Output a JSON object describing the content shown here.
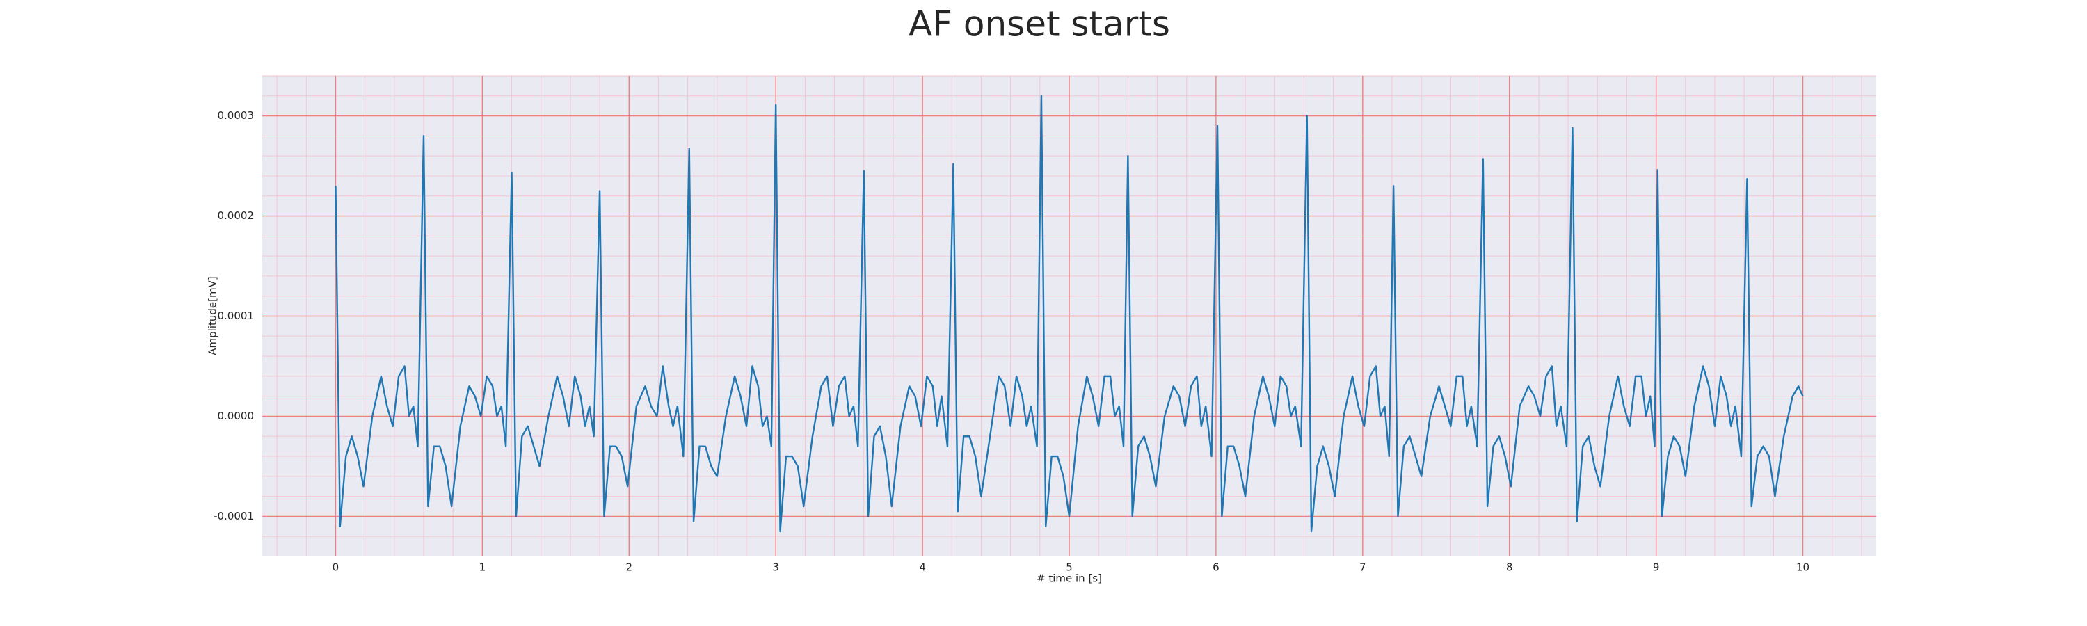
{
  "chart_data": {
    "type": "line",
    "title": "AF onset starts",
    "xlabel": "# time in [s]",
    "ylabel": "Amplitude[mV]",
    "xlim": [
      -0.5,
      10.5
    ],
    "xticks": [
      0,
      1,
      2,
      3,
      4,
      5,
      6,
      7,
      8,
      9,
      10
    ],
    "ylim": [
      -0.00014,
      0.00034
    ],
    "yticks": [
      -0.0001,
      {
        "value": 0,
        "label": "0.0000"
      },
      0.0001,
      0.0002,
      0.0003
    ],
    "grid": true,
    "minor_grid": true,
    "grid_color": "#f08080",
    "minor_grid_color": "#f4c6d2",
    "background": "#eaeaf2",
    "series": [
      {
        "color": "#1f77b4",
        "x": [
          0,
          0.03,
          0.07,
          0.11,
          0.15,
          0.19,
          0.25,
          0.31,
          0.35,
          0.39,
          0.43,
          0.47,
          0.5,
          0.53,
          0.56,
          0.6,
          0.63,
          0.67,
          0.71,
          0.75,
          0.79,
          0.85,
          0.91,
          0.95,
          0.99,
          1.03,
          1.07,
          1.1,
          1.13,
          1.16,
          1.2,
          1.23,
          1.27,
          1.31,
          1.35,
          1.39,
          1.45,
          1.51,
          1.55,
          1.59,
          1.63,
          1.67,
          1.7,
          1.73,
          1.76,
          1.8,
          1.83,
          1.87,
          1.91,
          1.95,
          1.99,
          2.05,
          2.11,
          2.15,
          2.19,
          2.23,
          2.27,
          2.3,
          2.33,
          2.37,
          2.41,
          2.44,
          2.48,
          2.52,
          2.56,
          2.6,
          2.66,
          2.72,
          2.76,
          2.8,
          2.84,
          2.88,
          2.91,
          2.94,
          2.97,
          3.0,
          3.03,
          3.07,
          3.11,
          3.15,
          3.19,
          3.25,
          3.31,
          3.35,
          3.39,
          3.43,
          3.47,
          3.5,
          3.53,
          3.56,
          3.6,
          3.63,
          3.67,
          3.71,
          3.75,
          3.79,
          3.85,
          3.91,
          3.95,
          3.99,
          4.03,
          4.07,
          4.1,
          4.13,
          4.17,
          4.21,
          4.24,
          4.28,
          4.32,
          4.36,
          4.4,
          4.46,
          4.52,
          4.56,
          4.6,
          4.64,
          4.68,
          4.71,
          4.74,
          4.78,
          4.81,
          4.84,
          4.88,
          4.92,
          4.96,
          5.0,
          5.06,
          5.12,
          5.16,
          5.2,
          5.24,
          5.28,
          5.31,
          5.34,
          5.37,
          5.4,
          5.43,
          5.47,
          5.51,
          5.55,
          5.59,
          5.65,
          5.71,
          5.75,
          5.79,
          5.83,
          5.87,
          5.9,
          5.93,
          5.97,
          6.01,
          6.04,
          6.08,
          6.12,
          6.16,
          6.2,
          6.26,
          6.32,
          6.36,
          6.4,
          6.44,
          6.48,
          6.51,
          6.54,
          6.58,
          6.62,
          6.65,
          6.69,
          6.73,
          6.77,
          6.81,
          6.87,
          6.93,
          6.97,
          7.01,
          7.05,
          7.09,
          7.12,
          7.15,
          7.18,
          7.21,
          7.24,
          7.28,
          7.32,
          7.36,
          7.4,
          7.46,
          7.52,
          7.56,
          7.6,
          7.64,
          7.68,
          7.71,
          7.74,
          7.78,
          7.82,
          7.85,
          7.89,
          7.93,
          7.97,
          8.01,
          8.07,
          8.13,
          8.17,
          8.21,
          8.25,
          8.29,
          8.32,
          8.35,
          8.39,
          8.43,
          8.46,
          8.5,
          8.54,
          8.58,
          8.62,
          8.68,
          8.74,
          8.78,
          8.82,
          8.86,
          8.9,
          8.93,
          8.96,
          8.99,
          9.01,
          9.04,
          9.08,
          9.12,
          9.16,
          9.2,
          9.26,
          9.32,
          9.36,
          9.4,
          9.44,
          9.48,
          9.51,
          9.54,
          9.58,
          9.62,
          9.65,
          9.69,
          9.73,
          9.77,
          9.81,
          9.87,
          9.93,
          9.97,
          10.0
        ],
        "values": [
          0.00023,
          -0.00011,
          -4e-05,
          -2e-05,
          -4e-05,
          -7e-05,
          0,
          4e-05,
          1e-05,
          -1e-05,
          4e-05,
          5e-05,
          0,
          1e-05,
          -3e-05,
          0.00028,
          -9e-05,
          -3e-05,
          -3e-05,
          -5e-05,
          -9e-05,
          -1e-05,
          3e-05,
          2e-05,
          0,
          4e-05,
          3e-05,
          0,
          1e-05,
          -3e-05,
          0.000243,
          -0.0001,
          -2e-05,
          -1e-05,
          -3e-05,
          -5e-05,
          0,
          4e-05,
          2e-05,
          -1e-05,
          4e-05,
          2e-05,
          -1e-05,
          1e-05,
          -2e-05,
          0.000225,
          -0.0001,
          -3e-05,
          -3e-05,
          -4e-05,
          -7e-05,
          1e-05,
          3e-05,
          1e-05,
          0,
          5e-05,
          1e-05,
          -1e-05,
          1e-05,
          -4e-05,
          0.000267,
          -0.000105,
          -3e-05,
          -3e-05,
          -5e-05,
          -6e-05,
          0,
          4e-05,
          2e-05,
          -1e-05,
          5e-05,
          3e-05,
          -1e-05,
          0,
          -3e-05,
          0.000311,
          -0.000115,
          -4e-05,
          -4e-05,
          -5e-05,
          -9e-05,
          -2e-05,
          3e-05,
          4e-05,
          -1e-05,
          3e-05,
          4e-05,
          0,
          1e-05,
          -3e-05,
          0.000245,
          -0.0001,
          -2e-05,
          -1e-05,
          -4e-05,
          -9e-05,
          -1e-05,
          3e-05,
          2e-05,
          -1e-05,
          4e-05,
          3e-05,
          -1e-05,
          2e-05,
          -3e-05,
          0.000252,
          -9.5e-05,
          -2e-05,
          -2e-05,
          -4e-05,
          -8e-05,
          -2e-05,
          4e-05,
          3e-05,
          -1e-05,
          4e-05,
          2e-05,
          -1e-05,
          1e-05,
          -3e-05,
          0.00032,
          -0.00011,
          -4e-05,
          -4e-05,
          -6e-05,
          -0.0001,
          -1e-05,
          4e-05,
          2e-05,
          -1e-05,
          4e-05,
          4e-05,
          0,
          1e-05,
          -3e-05,
          0.00026,
          -0.0001,
          -3e-05,
          -2e-05,
          -4e-05,
          -7e-05,
          0,
          3e-05,
          2e-05,
          -1e-05,
          3e-05,
          4e-05,
          -1e-05,
          1e-05,
          -4e-05,
          0.00029,
          -0.0001,
          -3e-05,
          -3e-05,
          -5e-05,
          -8e-05,
          0,
          4e-05,
          2e-05,
          -1e-05,
          4e-05,
          3e-05,
          0,
          1e-05,
          -3e-05,
          0.0003,
          -0.000115,
          -5e-05,
          -3e-05,
          -5e-05,
          -8e-05,
          0,
          4e-05,
          1e-05,
          -1e-05,
          4e-05,
          5e-05,
          0,
          1e-05,
          -4e-05,
          0.00023,
          -0.0001,
          -3e-05,
          -2e-05,
          -4e-05,
          -6e-05,
          0,
          3e-05,
          1e-05,
          -1e-05,
          4e-05,
          4e-05,
          -1e-05,
          1e-05,
          -3e-05,
          0.000257,
          -9e-05,
          -3e-05,
          -2e-05,
          -4e-05,
          -7e-05,
          1e-05,
          3e-05,
          2e-05,
          0,
          4e-05,
          5e-05,
          -1e-05,
          1e-05,
          -3e-05,
          0.000288,
          -0.000105,
          -3e-05,
          -2e-05,
          -5e-05,
          -7e-05,
          0,
          4e-05,
          1e-05,
          -1e-05,
          4e-05,
          4e-05,
          0,
          2e-05,
          -3e-05,
          0.000246,
          -0.0001,
          -4e-05,
          -2e-05,
          -3e-05,
          -6e-05,
          1e-05,
          5e-05,
          3e-05,
          -1e-05,
          4e-05,
          2e-05,
          -1e-05,
          1e-05,
          -4e-05,
          0.000237,
          -9e-05,
          -4e-05,
          -3e-05,
          -4e-05,
          -8e-05,
          -2e-05,
          2e-05,
          3e-05,
          2e-05
        ]
      }
    ]
  }
}
